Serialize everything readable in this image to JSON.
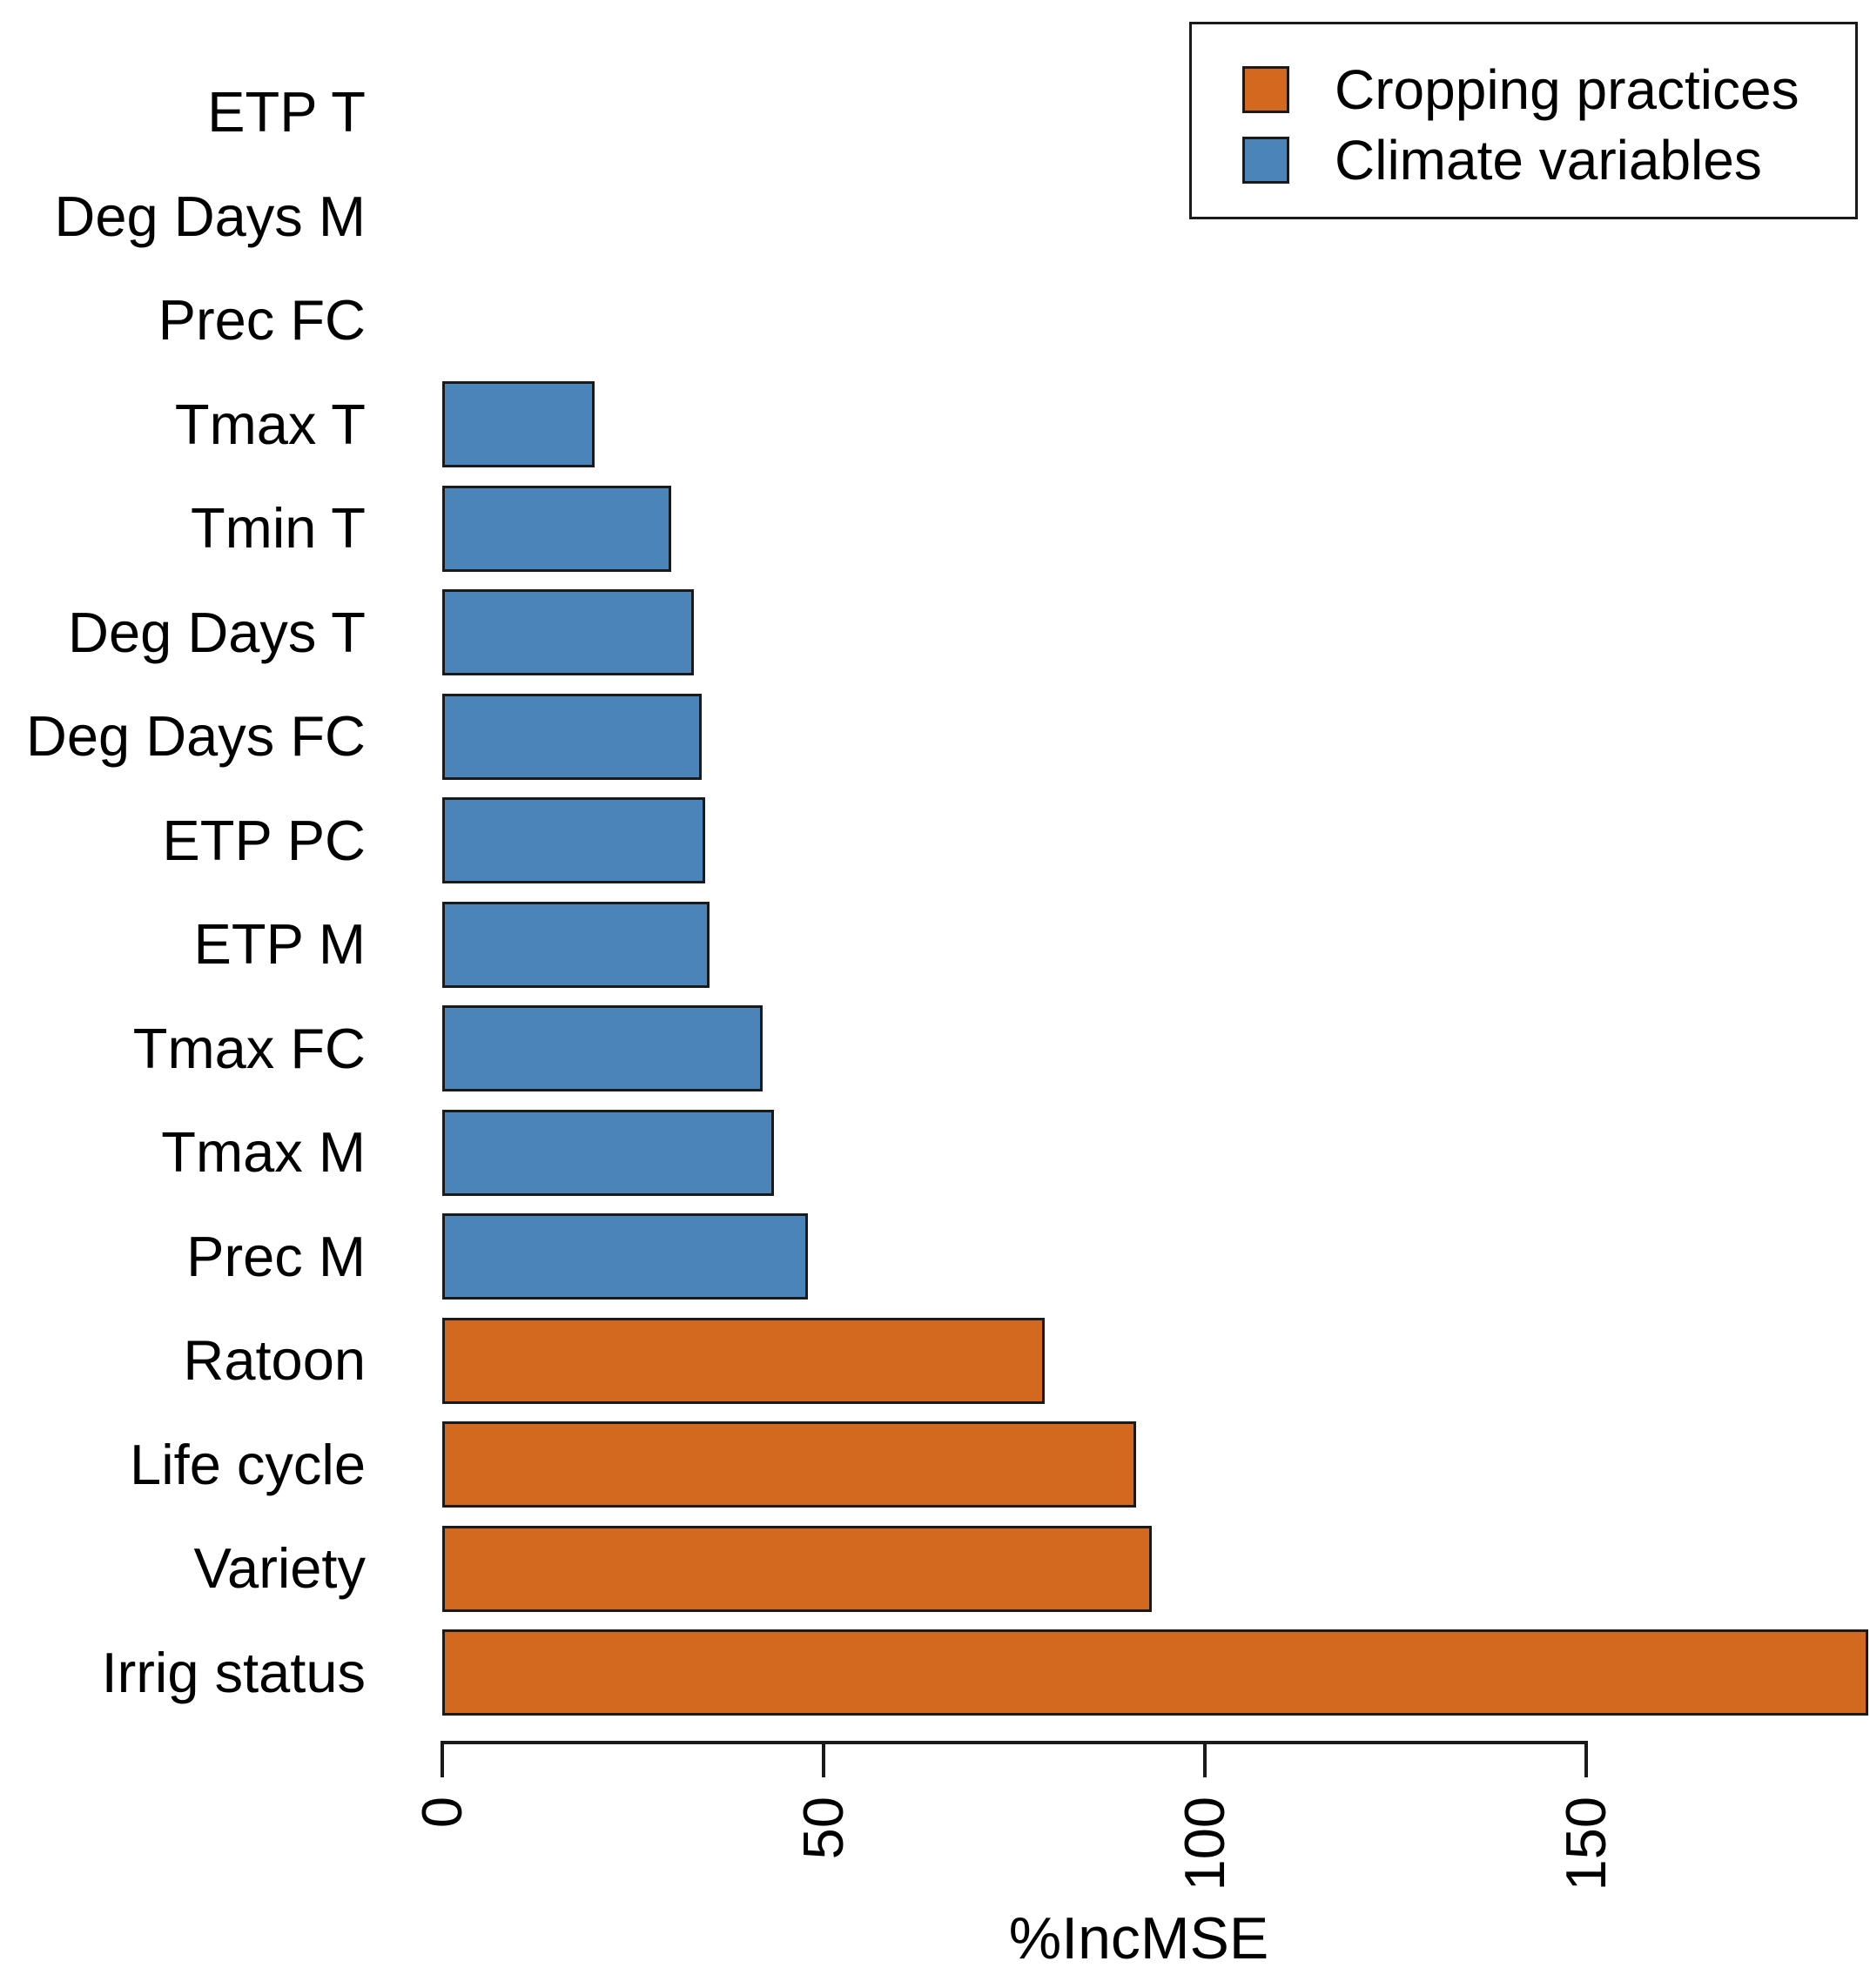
{
  "chart_data": {
    "type": "bar",
    "orientation": "horizontal",
    "title": "",
    "xlabel": "%IncMSE",
    "ylabel": "",
    "grid": false,
    "legend_position": "top-right",
    "x_tick_labels": [
      "0",
      "50",
      "100",
      "150"
    ],
    "x_tick_values": [
      0,
      50,
      100,
      150
    ],
    "xlim": [
      0,
      187
    ],
    "categories": [
      "ETP T",
      "Deg Days M",
      "Prec FC",
      "Tmax T",
      "Tmin T",
      "Deg Days T",
      "Deg Days FC",
      "ETP PC",
      "ETP M",
      "Tmax FC",
      "Tmax M",
      "Prec M",
      "Ratoon",
      "Life cycle",
      "Variety",
      "Irrig status"
    ],
    "values": [
      0,
      0,
      0,
      20,
      30,
      33,
      34,
      34.5,
      35,
      42,
      43.5,
      48,
      79,
      91,
      93,
      187
    ],
    "groups": [
      "climate",
      "climate",
      "climate",
      "climate",
      "climate",
      "climate",
      "climate",
      "climate",
      "climate",
      "climate",
      "climate",
      "climate",
      "cropping",
      "cropping",
      "cropping",
      "cropping"
    ],
    "group_colors": {
      "cropping": "#D2691E",
      "climate": "#4A84B8"
    },
    "bar_border_color": "#1A1A1A",
    "legend": [
      {
        "label": "Cropping practices",
        "group": "cropping",
        "color": "#D2691E"
      },
      {
        "label": "Climate variables",
        "group": "climate",
        "color": "#4A84B8"
      }
    ]
  }
}
